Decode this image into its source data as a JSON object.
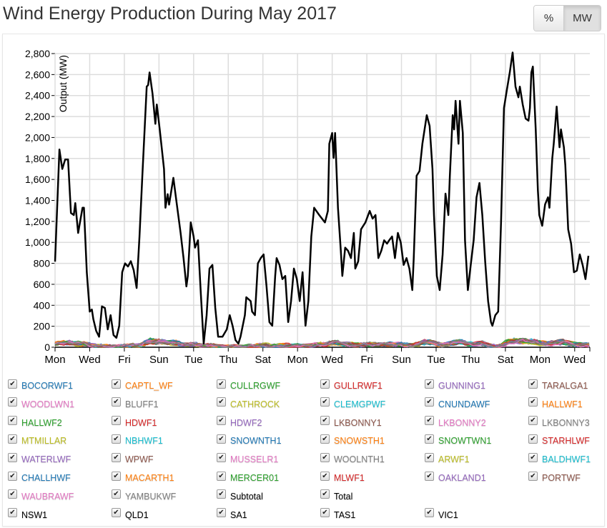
{
  "title": "Wind Energy Production During May 2017",
  "units_toggle": {
    "options": [
      "%",
      "MW"
    ],
    "selected": "MW"
  },
  "legend": [
    {
      "label": "BOCORWF1",
      "color": "#1f77b4",
      "checked": true
    },
    {
      "label": "CAPTL_WF",
      "color": "#ff7f0e",
      "checked": true
    },
    {
      "label": "CULLRGWF",
      "color": "#2ca02c",
      "checked": true
    },
    {
      "label": "GULLRWF1",
      "color": "#d62728",
      "checked": true
    },
    {
      "label": "GUNNING1",
      "color": "#9467bd",
      "checked": true
    },
    {
      "label": "TARALGA1",
      "color": "#8c564b",
      "checked": true
    },
    {
      "label": "WOODLWN1",
      "color": "#e377c2",
      "checked": true
    },
    {
      "label": "BLUFF1",
      "color": "#7f7f7f",
      "checked": true
    },
    {
      "label": "CATHROCK",
      "color": "#bcbd22",
      "checked": true
    },
    {
      "label": "CLEMGPWF",
      "color": "#17becf",
      "checked": true
    },
    {
      "label": "CNUNDAWF",
      "color": "#1f77b4",
      "checked": true
    },
    {
      "label": "HALLWF1",
      "color": "#ff7f0e",
      "checked": true
    },
    {
      "label": "HALLWF2",
      "color": "#2ca02c",
      "checked": true
    },
    {
      "label": "HDWF1",
      "color": "#d62728",
      "checked": true
    },
    {
      "label": "HDWF2",
      "color": "#9467bd",
      "checked": true
    },
    {
      "label": "LKBONNY1",
      "color": "#8c564b",
      "checked": true
    },
    {
      "label": "LKBONNY2",
      "color": "#e377c2",
      "checked": true
    },
    {
      "label": "LKBONNY3",
      "color": "#7f7f7f",
      "checked": true
    },
    {
      "label": "MTMILLAR",
      "color": "#bcbd22",
      "checked": true
    },
    {
      "label": "NBHWF1",
      "color": "#17becf",
      "checked": true
    },
    {
      "label": "SNOWNTH1",
      "color": "#1f77b4",
      "checked": true
    },
    {
      "label": "SNOWSTH1",
      "color": "#ff7f0e",
      "checked": true
    },
    {
      "label": "SNOWTWN1",
      "color": "#2ca02c",
      "checked": true
    },
    {
      "label": "STARHLWF",
      "color": "#d62728",
      "checked": true
    },
    {
      "label": "WATERLWF",
      "color": "#9467bd",
      "checked": true
    },
    {
      "label": "WPWF",
      "color": "#8c564b",
      "checked": true
    },
    {
      "label": "MUSSELR1",
      "color": "#e377c2",
      "checked": true
    },
    {
      "label": "WOOLNTH1",
      "color": "#7f7f7f",
      "checked": true
    },
    {
      "label": "ARWF1",
      "color": "#bcbd22",
      "checked": true
    },
    {
      "label": "BALDHWF1",
      "color": "#17becf",
      "checked": true
    },
    {
      "label": "CHALLHWF",
      "color": "#1f77b4",
      "checked": true
    },
    {
      "label": "MACARTH1",
      "color": "#ff7f0e",
      "checked": true
    },
    {
      "label": "MERCER01",
      "color": "#2ca02c",
      "checked": true
    },
    {
      "label": "MLWF1",
      "color": "#d62728",
      "checked": true
    },
    {
      "label": "OAKLAND1",
      "color": "#9467bd",
      "checked": true
    },
    {
      "label": "PORTWF",
      "color": "#8c564b",
      "checked": true
    },
    {
      "label": "WAUBRAWF",
      "color": "#e377c2",
      "checked": true
    },
    {
      "label": "YAMBUKWF",
      "color": "#7f7f7f",
      "checked": true
    },
    {
      "label": "Subtotal",
      "color": "#000000",
      "checked": true
    },
    {
      "label": "Total",
      "color": "#000000",
      "checked": true
    },
    {
      "label": "NSW1",
      "color": "#000000",
      "checked": true,
      "row_break_before": true
    },
    {
      "label": "QLD1",
      "color": "#000000",
      "checked": true
    },
    {
      "label": "SA1",
      "color": "#000000",
      "checked": true
    },
    {
      "label": "TAS1",
      "color": "#000000",
      "checked": true
    },
    {
      "label": "VIC1",
      "color": "#000000",
      "checked": true
    }
  ],
  "chart_data": {
    "type": "line",
    "title": "Wind Energy Production During May 2017",
    "ylabel": "Output (MW)",
    "xlabel": "",
    "ylim": [
      0,
      2800
    ],
    "yticks": [
      "0",
      "200",
      "400",
      "600",
      "800",
      "1,000",
      "1,200",
      "1,400",
      "1,600",
      "1,800",
      "2,000",
      "2,200",
      "2,400",
      "2,600",
      "2,800"
    ],
    "xlim": [
      "2017-05-01T00:00",
      "2017-05-31T21:00"
    ],
    "xticks": [
      "Mon",
      "Wed",
      "Fri",
      "Sun",
      "Tue",
      "Thu",
      "Sat",
      "Mon",
      "Wed",
      "Fri",
      "Sun",
      "Tue",
      "Thu",
      "Sat",
      "Mon",
      "Wed"
    ],
    "grid": true,
    "series": [
      {
        "name": "Total",
        "color": "#000000",
        "x": [
          "05-01T00",
          "05-01T06",
          "05-01T10",
          "05-01T14",
          "05-01T18",
          "05-01T22",
          "05-02T02",
          "05-02T04",
          "05-02T08",
          "05-02T14",
          "05-02T16",
          "05-02T20",
          "05-03T00",
          "05-03T03",
          "05-03T05",
          "05-03T09",
          "05-03T13",
          "05-03T17",
          "05-03T21",
          "05-04T01",
          "05-04T05",
          "05-04T09",
          "05-04T13",
          "05-04T17",
          "05-04T21",
          "05-05T01",
          "05-05T05",
          "05-05T09",
          "05-05T13",
          "05-05T17",
          "05-05T21",
          "05-06T01",
          "05-06T07",
          "05-06T09",
          "05-06T11",
          "05-06T15",
          "05-06T19",
          "05-06T21",
          "05-07T01",
          "05-07T07",
          "05-07T09",
          "05-07T12",
          "05-07T14",
          "05-07T20",
          "05-08T00",
          "05-08T06",
          "05-08T10",
          "05-08T14",
          "05-08T16",
          "05-08T20",
          "05-09T00",
          "05-09T02",
          "05-09T06",
          "05-09T10",
          "05-09T14",
          "05-09T18",
          "05-09T22",
          "05-10T02",
          "05-10T06",
          "05-10T10",
          "05-10T16",
          "05-10T22",
          "05-11T02",
          "05-11T06",
          "05-11T10",
          "05-11T14",
          "05-11T17",
          "05-11T23",
          "05-12T01",
          "05-12T07",
          "05-12T09",
          "05-12T13",
          "05-12T17",
          "05-12T21",
          "05-13T01",
          "05-13T05",
          "05-13T09",
          "05-13T13",
          "05-13T17",
          "05-13T19",
          "05-13T23",
          "05-14T03",
          "05-14T07",
          "05-14T11",
          "05-14T15",
          "05-14T19",
          "05-14T23",
          "05-15T03",
          "05-15T07",
          "05-15T11",
          "05-15T15",
          "05-15T19",
          "05-15T23",
          "05-16T02",
          "05-16T06",
          "05-16T14",
          "05-16T18",
          "05-16T20",
          "05-17T00",
          "05-17T02",
          "05-17T04",
          "05-17T08",
          "05-17T12",
          "05-17T14",
          "05-17T18",
          "05-17T22",
          "05-18T02",
          "05-18T06",
          "05-18T08",
          "05-18T12",
          "05-18T16",
          "05-18T22",
          "05-19T04",
          "05-19T08",
          "05-19T12",
          "05-19T16",
          "05-19T20",
          "05-20T00",
          "05-20T04",
          "05-20T07",
          "05-20T11",
          "05-20T15",
          "05-20T19",
          "05-20T23",
          "05-21T03",
          "05-21T07",
          "05-21T11",
          "05-21T15",
          "05-21T17",
          "05-21T21",
          "05-22T01",
          "05-22T05",
          "05-22T11",
          "05-22T15",
          "05-22T19",
          "05-22T21",
          "05-23T01",
          "05-23T05",
          "05-23T09",
          "05-23T13",
          "05-23T17",
          "05-23T19",
          "05-23T23",
          "05-24T01",
          "05-24T03",
          "05-24T07",
          "05-24T09",
          "05-24T13",
          "05-24T16",
          "05-24T20",
          "05-25T00",
          "05-25T04",
          "05-25T08",
          "05-25T12",
          "05-25T16",
          "05-25T20",
          "05-26T00",
          "05-26T04",
          "05-26T06",
          "05-26T10",
          "05-26T14",
          "05-26T18",
          "05-26T22",
          "05-27T02",
          "05-27T06",
          "05-27T10",
          "05-27T14",
          "05-27T18",
          "05-27T20",
          "05-28T00",
          "05-28T04",
          "05-28T08",
          "05-28T10",
          "05-28T12",
          "05-28T14",
          "05-28T18",
          "05-28T21",
          "05-28T23",
          "05-29T03",
          "05-29T07",
          "05-29T11",
          "05-29T13",
          "05-29T17",
          "05-29T19",
          "05-29T23",
          "05-30T03",
          "05-30T05",
          "05-30T09",
          "05-30T11",
          "05-30T15",
          "05-30T19",
          "05-30T23",
          "05-31T03",
          "05-31T07",
          "05-31T11",
          "05-31T15",
          "05-31T19"
        ],
        "values": [
          816,
          1886,
          1700,
          1790,
          1790,
          1280,
          1260,
          1375,
          1090,
          1330,
          1330,
          715,
          340,
          360,
          270,
          157,
          100,
          390,
          375,
          170,
          306,
          116,
          90,
          205,
          715,
          800,
          770,
          820,
          735,
          565,
          1056,
          1635,
          2485,
          2500,
          2620,
          2420,
          2130,
          2315,
          2077,
          1700,
          1330,
          1460,
          1360,
          1615,
          1400,
          1090,
          850,
          580,
          680,
          1190,
          1056,
          950,
          1020,
          510,
          34,
          306,
          750,
          785,
          375,
          100,
          100,
          170,
          306,
          205,
          68,
          34,
          100,
          306,
          477,
          440,
          340,
          306,
          800,
          850,
          885,
          580,
          240,
          205,
          680,
          850,
          785,
          650,
          680,
          240,
          440,
          750,
          650,
          440,
          715,
          205,
          440,
          1056,
          1330,
          1300,
          1260,
          1190,
          1300,
          1940,
          2043,
          1805,
          2043,
          1330,
          920,
          680,
          950,
          920,
          850,
          1090,
          750,
          818,
          1125,
          1190,
          1300,
          1226,
          1260,
          850,
          920,
          1020,
          988,
          1020,
          1056,
          850,
          1090,
          1000,
          785,
          850,
          750,
          545,
          850,
          1635,
          1680,
          1940,
          2213,
          2110,
          1700,
          1260,
          680,
          545,
          885,
          1465,
          1260,
          1635,
          2213,
          2077,
          2350,
          1940,
          2350,
          2043,
          1020,
          545,
          785,
          1020,
          1430,
          1566,
          1260,
          818,
          440,
          240,
          205,
          306,
          340,
          1190,
          2281,
          2452,
          2620,
          2810,
          2485,
          2383,
          2485,
          2315,
          2180,
          2160,
          2281,
          2620,
          2676,
          2077,
          1498,
          1260,
          1158,
          1362,
          1430,
          1330,
          1805,
          1940,
          2295,
          1907,
          2077,
          1907,
          1736,
          1124,
          988,
          715,
          730,
          885,
          785,
          650,
          872
        ]
      }
    ]
  }
}
